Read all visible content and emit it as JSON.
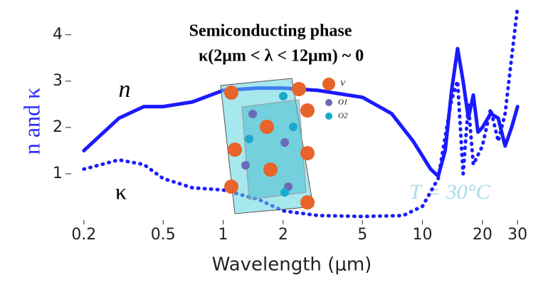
{
  "chart_data": {
    "type": "line",
    "title": "Semiconducting phase",
    "subtitle": "κ(2μm < λ < 12μm) ~ 0",
    "x_label": "Wavelength (μm)",
    "y_label": "n and κ",
    "annotations": [
      "n",
      "κ",
      "T = 30°C"
    ],
    "crystal_labels": [
      "V",
      "O1",
      "O2"
    ],
    "xscale": "log",
    "xlim": [
      0.18,
      32
    ],
    "ylim": [
      0,
      4.75
    ],
    "xticks": [
      0.2,
      0.5,
      1,
      2,
      5,
      10,
      20,
      30
    ],
    "yticks": [
      1,
      2,
      3,
      4
    ],
    "grid": false,
    "series": [
      {
        "name": "n",
        "color": "#1a1aff",
        "style": "solid",
        "x": [
          0.2,
          0.3,
          0.4,
          0.5,
          0.7,
          1,
          1.5,
          2,
          3,
          5,
          7,
          9,
          11,
          12,
          13,
          14,
          15,
          16,
          17,
          18,
          19,
          20,
          22,
          24,
          26,
          28,
          30
        ],
        "values": [
          1.5,
          2.2,
          2.45,
          2.45,
          2.55,
          2.8,
          2.85,
          2.85,
          2.8,
          2.65,
          2.3,
          1.7,
          1.1,
          0.95,
          1.5,
          2.8,
          3.7,
          3.0,
          2.2,
          2.7,
          1.9,
          2.0,
          2.3,
          2.2,
          1.6,
          2.0,
          2.45
        ]
      },
      {
        "name": "κ",
        "color": "#1a1aff",
        "style": "dotted",
        "x": [
          0.2,
          0.3,
          0.4,
          0.5,
          0.7,
          1,
          1.5,
          2,
          3,
          5,
          8,
          10,
          12,
          13,
          14,
          15,
          16,
          17,
          18,
          20,
          22,
          24,
          26,
          28,
          30
        ],
        "values": [
          1.1,
          1.3,
          1.2,
          0.9,
          0.7,
          0.65,
          0.45,
          0.2,
          0.1,
          0.08,
          0.1,
          0.3,
          0.9,
          1.8,
          2.6,
          3.0,
          1.0,
          2.5,
          1.2,
          1.6,
          2.4,
          1.7,
          2.3,
          3.5,
          4.6
        ]
      }
    ]
  }
}
